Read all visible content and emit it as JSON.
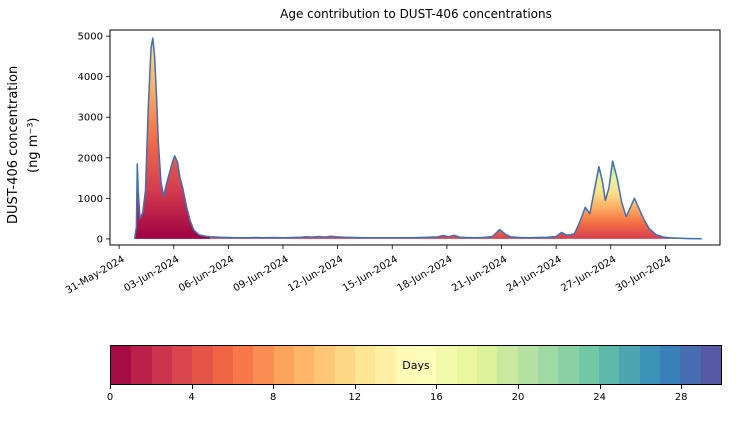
{
  "title": "Age contribution to DUST-406 concentrations",
  "y_axis": {
    "label_line1": "DUST-406 concentration",
    "label_line2": "(ng m⁻³)",
    "ticks": [
      0,
      1000,
      2000,
      3000,
      4000,
      5000
    ],
    "range": [
      -150,
      5150
    ]
  },
  "x_axis": {
    "tick_labels": [
      "31-May-2024",
      "03-Jun-2024",
      "06-Jun-2024",
      "09-Jun-2024",
      "12-Jun-2024",
      "15-Jun-2024",
      "18-Jun-2024",
      "21-Jun-2024",
      "24-Jun-2024",
      "27-Jun-2024",
      "30-Jun-2024"
    ],
    "tick_day_offsets": [
      0,
      3,
      6,
      9,
      12,
      15,
      18,
      21,
      24,
      27,
      30
    ],
    "domain_days": [
      -0.5,
      33
    ]
  },
  "chart_data": {
    "type": "area",
    "title": "Age contribution to DUST-406 concentrations",
    "ylabel": "DUST-406 concentration (ng m⁻³)",
    "ylim": [
      0,
      5000
    ],
    "x_unit": "days since 31-May-2024",
    "description": "Total DUST-406 concentration over time; the area under the blue total line is stacked by particle age (0-30 days) using the Spectral colormap shown in the colorbar.",
    "points": [
      [
        0.85,
        0
      ],
      [
        0.95,
        300
      ],
      [
        1.0,
        1850
      ],
      [
        1.05,
        1200
      ],
      [
        1.15,
        500
      ],
      [
        1.3,
        650
      ],
      [
        1.45,
        1200
      ],
      [
        1.6,
        3200
      ],
      [
        1.75,
        4700
      ],
      [
        1.85,
        4950
      ],
      [
        1.95,
        4500
      ],
      [
        2.05,
        3600
      ],
      [
        2.15,
        2400
      ],
      [
        2.3,
        1400
      ],
      [
        2.45,
        1050
      ],
      [
        2.6,
        1350
      ],
      [
        2.75,
        1600
      ],
      [
        2.9,
        1850
      ],
      [
        3.05,
        2050
      ],
      [
        3.2,
        1900
      ],
      [
        3.35,
        1500
      ],
      [
        3.5,
        1250
      ],
      [
        3.7,
        800
      ],
      [
        3.9,
        450
      ],
      [
        4.1,
        220
      ],
      [
        4.4,
        100
      ],
      [
        4.7,
        70
      ],
      [
        5,
        55
      ],
      [
        5.5,
        40
      ],
      [
        6,
        35
      ],
      [
        6.5,
        30
      ],
      [
        7,
        30
      ],
      [
        7.5,
        35
      ],
      [
        8,
        30
      ],
      [
        8.5,
        35
      ],
      [
        9,
        30
      ],
      [
        9.5,
        35
      ],
      [
        10,
        40
      ],
      [
        10.3,
        55
      ],
      [
        10.6,
        45
      ],
      [
        11,
        60
      ],
      [
        11.3,
        45
      ],
      [
        11.6,
        65
      ],
      [
        12,
        50
      ],
      [
        12.4,
        40
      ],
      [
        13,
        35
      ],
      [
        13.5,
        30
      ],
      [
        14,
        30
      ],
      [
        15,
        30
      ],
      [
        16,
        30
      ],
      [
        16.5,
        35
      ],
      [
        17,
        40
      ],
      [
        17.5,
        50
      ],
      [
        17.8,
        85
      ],
      [
        18.1,
        55
      ],
      [
        18.4,
        90
      ],
      [
        18.7,
        45
      ],
      [
        19,
        35
      ],
      [
        19.5,
        30
      ],
      [
        20,
        35
      ],
      [
        20.5,
        60
      ],
      [
        20.9,
        230
      ],
      [
        21.2,
        120
      ],
      [
        21.5,
        50
      ],
      [
        22,
        35
      ],
      [
        22.5,
        30
      ],
      [
        23,
        35
      ],
      [
        23.5,
        40
      ],
      [
        24,
        60
      ],
      [
        24.3,
        160
      ],
      [
        24.6,
        90
      ],
      [
        25,
        120
      ],
      [
        25.3,
        420
      ],
      [
        25.6,
        780
      ],
      [
        25.85,
        620
      ],
      [
        26.1,
        1200
      ],
      [
        26.35,
        1780
      ],
      [
        26.55,
        1400
      ],
      [
        26.7,
        950
      ],
      [
        26.9,
        1250
      ],
      [
        27.1,
        1920
      ],
      [
        27.35,
        1500
      ],
      [
        27.6,
        900
      ],
      [
        27.85,
        550
      ],
      [
        28.1,
        800
      ],
      [
        28.3,
        1000
      ],
      [
        28.55,
        750
      ],
      [
        28.8,
        500
      ],
      [
        29.1,
        260
      ],
      [
        29.5,
        100
      ],
      [
        29.9,
        45
      ],
      [
        30.3,
        25
      ],
      [
        30.8,
        15
      ],
      [
        31.3,
        8
      ],
      [
        32,
        3
      ]
    ],
    "line_color": "#3f6fb5",
    "segment_split_days": [
      5,
      24
    ],
    "fill_gradients": {
      "early_top_to_bottom": [
        "#fee08b",
        "#fdae61",
        "#f46d43",
        "#d53e4f",
        "#9e0142"
      ],
      "mid_top_to_bottom": [
        "#f46d43",
        "#d53e4f"
      ],
      "late_top_to_bottom": [
        "#abdda4",
        "#e6f598",
        "#fee08b",
        "#fdae61",
        "#f46d43",
        "#d53e4f"
      ]
    }
  },
  "colorbar": {
    "label": "Days",
    "tick_labels": [
      "0",
      "4",
      "8",
      "12",
      "16",
      "20",
      "24",
      "28"
    ],
    "tick_values": [
      0,
      4,
      8,
      12,
      16,
      20,
      24,
      28
    ],
    "range": [
      0,
      30
    ],
    "n_bins": 30,
    "colormap": "Spectral",
    "anchors": [
      "#9e0142",
      "#d53e4f",
      "#f46d43",
      "#fdae61",
      "#fee08b",
      "#ffffbf",
      "#e6f598",
      "#abdda4",
      "#66c2a5",
      "#3288bd",
      "#5e4fa2"
    ]
  }
}
